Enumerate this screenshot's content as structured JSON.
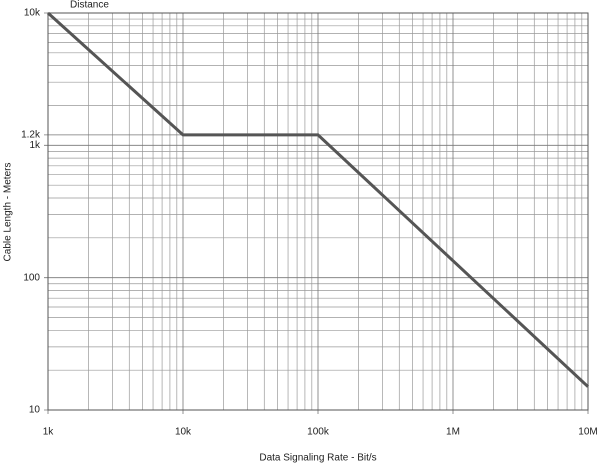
{
  "chart_data": {
    "type": "line",
    "x_label": "Data Signaling Rate - Bit/s",
    "y_label": "Cable Length - Meters",
    "log_x": true,
    "log_y": true,
    "grid": true,
    "x": [
      1000,
      10000,
      100000,
      10000000
    ],
    "series": [
      {
        "name": "Distance",
        "color": "#555555",
        "values": [
          10000,
          1200,
          1200,
          15
        ]
      }
    ],
    "xlim": [
      1000,
      10000000
    ],
    "xticks": [
      {
        "value": 1000,
        "label": "1k"
      },
      {
        "value": 10000,
        "label": "10k"
      },
      {
        "value": 100000,
        "label": "100k"
      },
      {
        "value": 1000000,
        "label": "1M"
      },
      {
        "value": 10000000,
        "label": "10M"
      }
    ],
    "ylim": [
      10,
      10000
    ],
    "yticks": [
      10,
      100,
      {
        "value": 1000,
        "label": "1k"
      },
      {
        "value": 1200,
        "label": "1.2k"
      },
      {
        "value": 10000,
        "label": "10k"
      }
    ]
  }
}
